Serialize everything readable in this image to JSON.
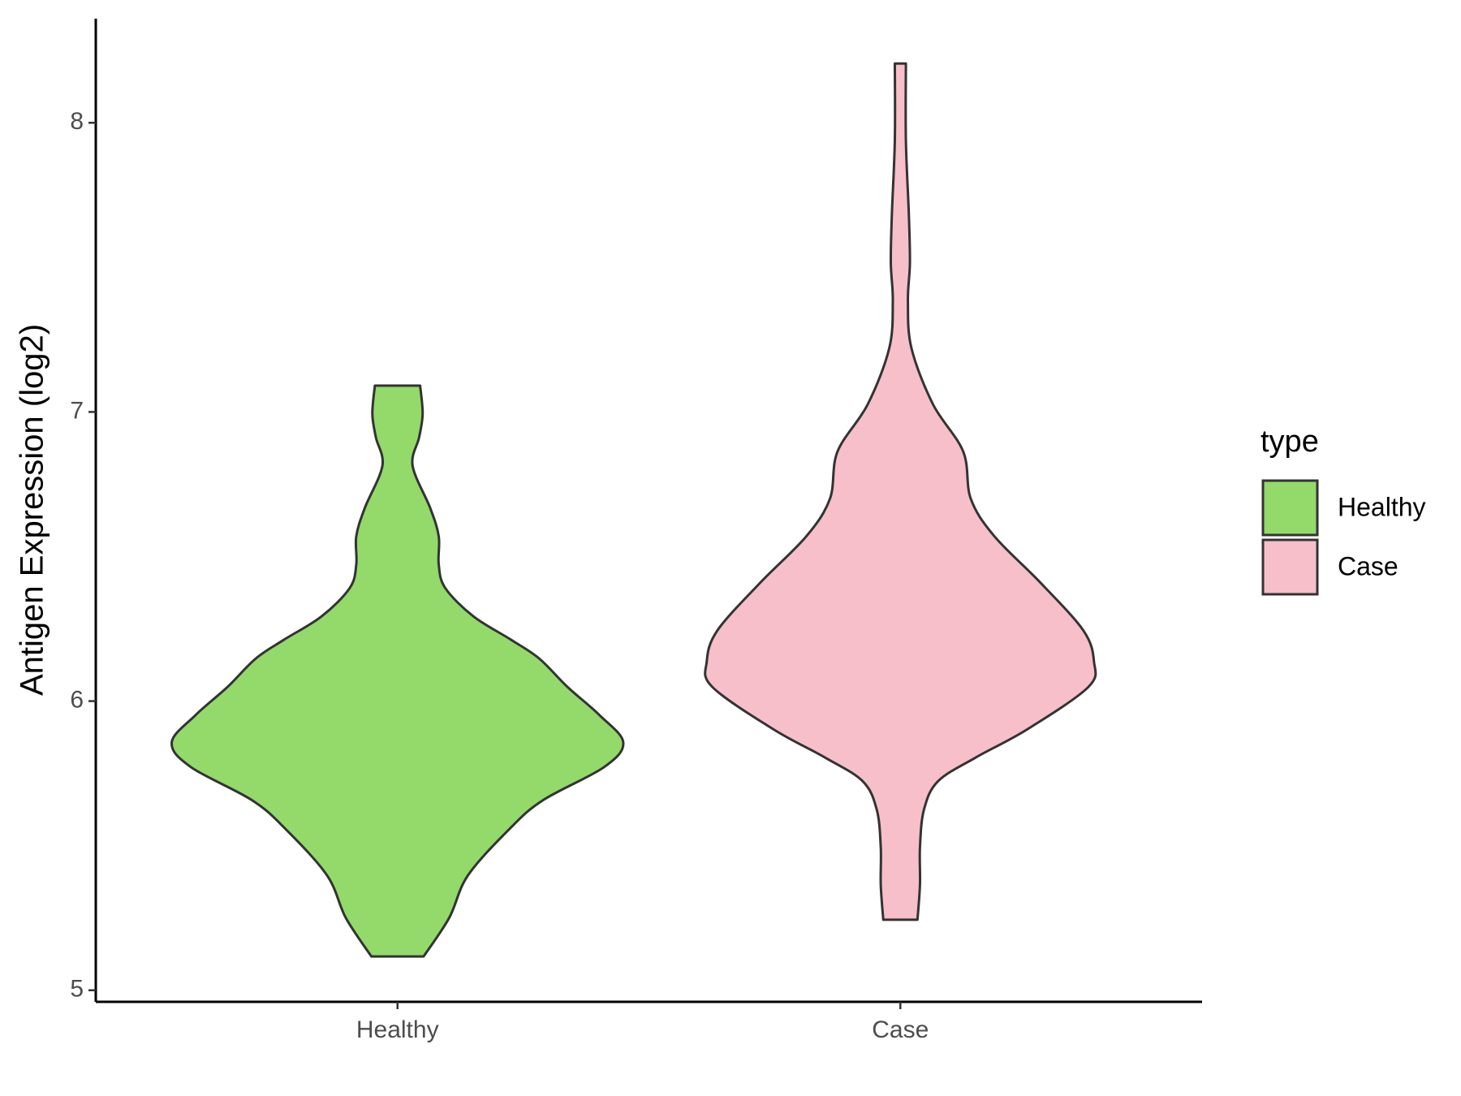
{
  "chart_data": {
    "type": "violin",
    "y_label": "Antigen Expression (log2)",
    "categories": [
      "Healthy",
      "Case"
    ],
    "ylim": [
      4.96,
      8.36
    ],
    "yticks": [
      5,
      6,
      7,
      8
    ],
    "legend_title": "type",
    "legend_position": "right",
    "series": [
      {
        "name": "Healthy",
        "color": "#93da6a",
        "y": [
          5.117,
          5.251,
          5.397,
          5.56,
          5.658,
          5.772,
          5.857,
          5.951,
          6.049,
          6.147,
          6.212,
          6.293,
          6.391,
          6.472,
          6.57,
          6.668,
          6.814,
          6.912,
          6.993,
          7.091
        ],
        "width": [
          0.052,
          0.103,
          0.14,
          0.224,
          0.29,
          0.411,
          0.449,
          0.402,
          0.338,
          0.282,
          0.226,
          0.151,
          0.095,
          0.082,
          0.082,
          0.065,
          0.03,
          0.043,
          0.05,
          0.045
        ]
      },
      {
        "name": "Case",
        "color": "#f7bfca",
        "y": [
          5.244,
          5.365,
          5.495,
          5.625,
          5.723,
          5.805,
          5.902,
          6.049,
          6.137,
          6.244,
          6.407,
          6.57,
          6.7,
          6.863,
          7.026,
          7.221,
          7.384,
          7.515,
          7.678,
          7.938,
          8.205
        ],
        "width": [
          0.034,
          0.039,
          0.039,
          0.047,
          0.075,
          0.15,
          0.252,
          0.374,
          0.385,
          0.364,
          0.28,
          0.187,
          0.14,
          0.125,
          0.065,
          0.022,
          0.015,
          0.019,
          0.017,
          0.011,
          0.011
        ]
      }
    ]
  }
}
